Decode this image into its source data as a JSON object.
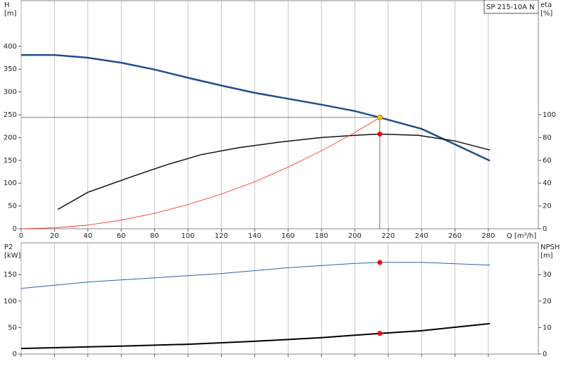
{
  "chart_data": [
    {
      "type": "line",
      "title": "SP 215-10A N",
      "ylabel": "H",
      "yunit": "[m]",
      "y2label": "eta",
      "y2unit": "[%]",
      "xlabel": "Q [m³/h]",
      "xlim": [
        0,
        310
      ],
      "xticks": [
        0,
        20,
        40,
        60,
        80,
        100,
        120,
        140,
        160,
        180,
        200,
        220,
        240,
        260,
        280
      ],
      "ylim": [
        0,
        500
      ],
      "yticks": [
        0,
        50,
        100,
        150,
        200,
        250,
        300,
        350,
        400
      ],
      "y2lim": [
        0,
        200
      ],
      "y2ticks": [
        0,
        20,
        40,
        60,
        80,
        100
      ],
      "grid": "x",
      "series": [
        {
          "name": "H",
          "color": "#1f4e8c",
          "line_width": 2.5,
          "x": [
            0,
            20,
            40,
            60,
            80,
            100,
            120,
            140,
            160,
            180,
            200,
            215,
            240,
            260,
            281
          ],
          "values": [
            381,
            381,
            375,
            364,
            349,
            331,
            314,
            298,
            285,
            272,
            258,
            244,
            219,
            185,
            149
          ]
        },
        {
          "name": "eta",
          "color": "#111111",
          "line_width": 1.5,
          "axis": "y2",
          "x": [
            22,
            40,
            65,
            87,
            108,
            130,
            155,
            180,
            200,
            215,
            238,
            260,
            281
          ],
          "values": [
            17,
            32,
            45,
            56,
            65,
            71,
            76,
            80,
            82,
            83,
            82,
            77,
            69
          ]
        },
        {
          "name": "system",
          "color": "#ff2020",
          "line_width": 0.8,
          "x": [
            0,
            20,
            40,
            60,
            80,
            100,
            120,
            140,
            160,
            180,
            200,
            215
          ],
          "values": [
            0,
            2,
            8,
            19,
            34,
            53,
            76,
            103,
            135,
            171,
            211,
            244
          ]
        }
      ],
      "markers": [
        {
          "x": 215,
          "y": 244,
          "color": "#f5c000",
          "guides": true
        },
        {
          "x": 215,
          "y": 83,
          "axis": "y2",
          "color": "#ff0000"
        }
      ]
    },
    {
      "type": "line",
      "ylabel": "P2",
      "yunit": "[kW]",
      "y2label": "NPSH",
      "y2unit": "[m]",
      "xlim": [
        0,
        310
      ],
      "xticks": [
        0,
        20,
        40,
        60,
        80,
        100,
        120,
        140,
        160,
        180,
        200,
        220,
        240,
        260,
        280
      ],
      "ylim": [
        0,
        210
      ],
      "yticks": [
        0,
        50,
        100,
        150
      ],
      "y2lim": [
        0,
        42
      ],
      "y2ticks": [
        0,
        10,
        20,
        30
      ],
      "grid": "x",
      "series": [
        {
          "name": "P2",
          "color": "#2f5fa8",
          "line_width": 1,
          "x": [
            0,
            40,
            80,
            120,
            160,
            200,
            215,
            240,
            281
          ],
          "values": [
            124,
            136,
            144,
            152,
            163,
            171,
            173,
            173,
            168
          ]
        },
        {
          "name": "NPSH",
          "color": "#000000",
          "line_width": 2,
          "axis": "y2",
          "x": [
            0,
            20,
            60,
            100,
            140,
            180,
            215,
            240,
            281
          ],
          "values": [
            2.1,
            2.4,
            3,
            3.7,
            4.8,
            6.2,
            7.8,
            8.8,
            11.5
          ]
        }
      ],
      "markers": [
        {
          "x": 215,
          "y": 173,
          "color": "#ff0000"
        },
        {
          "x": 215,
          "y": 7.8,
          "axis": "y2",
          "color": "#ff0000"
        }
      ]
    }
  ]
}
